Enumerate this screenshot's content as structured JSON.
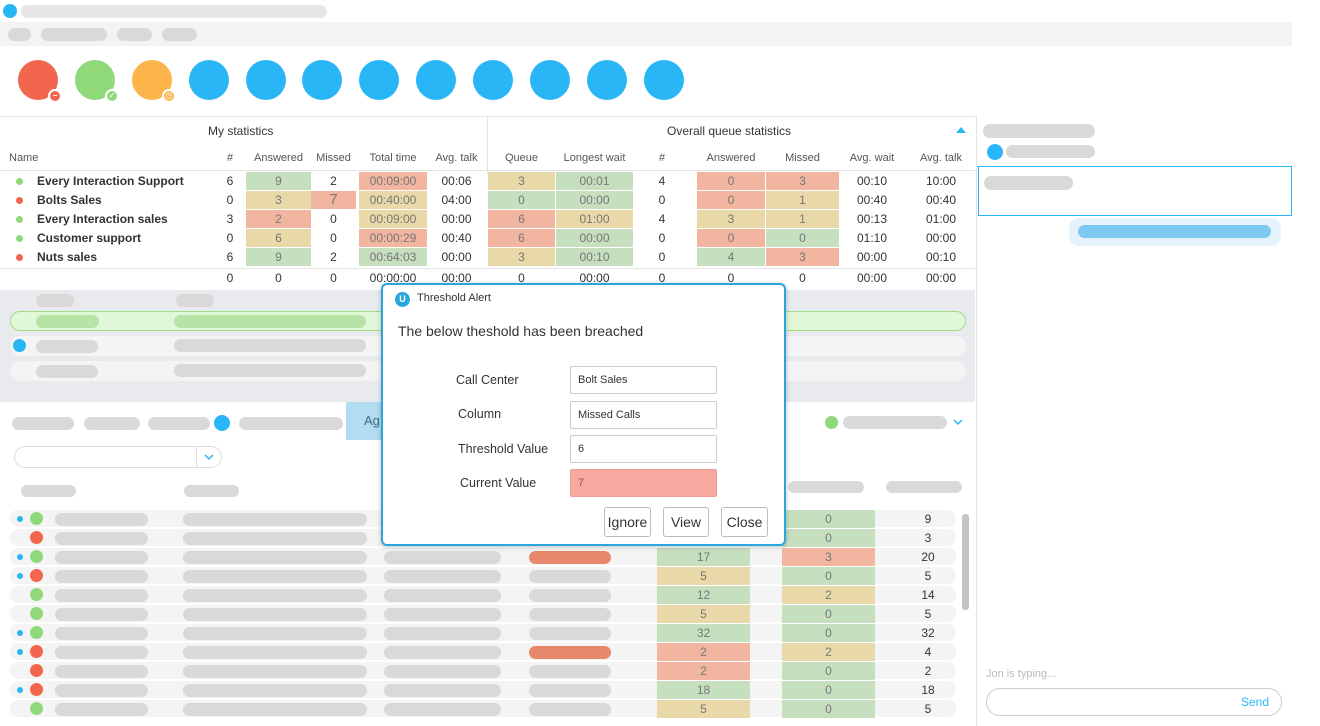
{
  "my_statistics": {
    "title": "My statistics",
    "headers": {
      "name": "Name",
      "count": "#",
      "answered": "Answered",
      "missed": "Missed",
      "total_time": "Total time",
      "avg_talk": "Avg. talk"
    }
  },
  "overall_statistics": {
    "title": "Overall queue statistics",
    "headers": {
      "queue": "Queue",
      "longest_wait": "Longest wait",
      "count": "#",
      "answered": "Answered",
      "missed": "Missed",
      "avg_wait": "Avg. wait",
      "avg_talk": "Avg. talk"
    }
  },
  "queues": [
    {
      "name": "Every Interaction Support",
      "status": "green",
      "count": "6",
      "answered": "9",
      "missed": "2",
      "total_time": "00:09:00",
      "avg_talk": "00:06",
      "queue": "3",
      "longest_wait": "00:01",
      "ocount": "4",
      "oanswered": "0",
      "omissed": "3",
      "avg_wait": "00:10",
      "oavg_talk": "10:00"
    },
    {
      "name": "Bolts Sales",
      "status": "red",
      "count": "0",
      "answered": "3",
      "missed": "7",
      "total_time": "00:40:00",
      "avg_talk": "04:00",
      "queue": "0",
      "longest_wait": "00:00",
      "ocount": "0",
      "oanswered": "0",
      "omissed": "1",
      "avg_wait": "00:40",
      "oavg_talk": "00:40"
    },
    {
      "name": "Every Interaction sales",
      "status": "green",
      "count": "3",
      "answered": "2",
      "missed": "0",
      "total_time": "00:09:00",
      "avg_talk": "00:00",
      "queue": "6",
      "longest_wait": "01:00",
      "ocount": "4",
      "oanswered": "3",
      "omissed": "1",
      "avg_wait": "00:13",
      "oavg_talk": "01:00"
    },
    {
      "name": "Customer support",
      "status": "green",
      "count": "0",
      "answered": "6",
      "missed": "0",
      "total_time": "00:00:29",
      "avg_talk": "00:40",
      "queue": "6",
      "longest_wait": "00:00",
      "ocount": "0",
      "oanswered": "0",
      "omissed": "0",
      "avg_wait": "01:10",
      "oavg_talk": "00:00"
    },
    {
      "name": "Nuts sales",
      "status": "red",
      "count": "6",
      "answered": "9",
      "missed": "2",
      "total_time": "00:64:03",
      "avg_talk": "00:00",
      "queue": "3",
      "longest_wait": "00:10",
      "ocount": "0",
      "oanswered": "4",
      "omissed": "3",
      "avg_wait": "00:00",
      "oavg_talk": "00:10"
    }
  ],
  "totals": {
    "count": "0",
    "answered": "0",
    "missed": "0",
    "total_time": "00:00:00",
    "avg_talk": "00:00",
    "queue": "0",
    "longest_wait": "00:00",
    "ocount": "0",
    "oanswered": "0",
    "omissed": "0",
    "avg_wait": "00:00",
    "oavg_talk": "00:00"
  },
  "tabs": {
    "active_label": "Ag"
  },
  "agent_rows": [
    {
      "a": "",
      "b": "0",
      "n": "9"
    },
    {
      "a": "",
      "b": "0",
      "n": "3"
    },
    {
      "a": "17",
      "b": "3",
      "n": "20"
    },
    {
      "a": "5",
      "b": "0",
      "n": "5"
    },
    {
      "a": "12",
      "b": "2",
      "n": "14"
    },
    {
      "a": "5",
      "b": "0",
      "n": "5"
    },
    {
      "a": "32",
      "b": "0",
      "n": "32"
    },
    {
      "a": "2",
      "b": "2",
      "n": "4"
    },
    {
      "a": "2",
      "b": "0",
      "n": "2"
    },
    {
      "a": "18",
      "b": "0",
      "n": "18"
    },
    {
      "a": "5",
      "b": "0",
      "n": "5"
    }
  ],
  "chat": {
    "typing": "Jon is typing...",
    "send_label": "Send"
  },
  "dialog": {
    "logo": "U",
    "title": "Threshold Alert",
    "message": "The below theshold has been breached",
    "call_center_label": "Call Center",
    "call_center_value": "Bolt Sales",
    "column_label": "Column",
    "column_value": "Missed Calls",
    "threshold_label": "Threshold Value",
    "threshold_value": "6",
    "current_label": "Current Value",
    "current_value": "7",
    "ignore_label": "Ignore",
    "view_label": "View",
    "close_label": "Close"
  },
  "colors": {
    "accent": "#29b6f6",
    "good": "#c6dfbf",
    "warn": "#e9d9a8",
    "bad": "#f2b5a0"
  }
}
